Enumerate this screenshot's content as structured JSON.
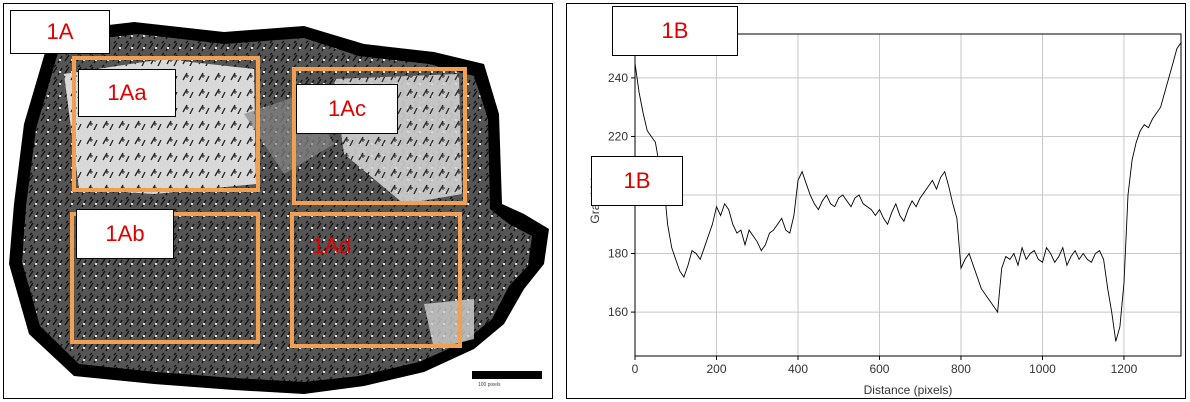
{
  "panel_a": {
    "label": "1A",
    "regions": [
      {
        "id": "1Aa"
      },
      {
        "id": "1Ab"
      },
      {
        "id": "1Ac"
      },
      {
        "id": "1Ad"
      }
    ],
    "scale_bar_text": "100 pixels",
    "roi_color": "#f0a050",
    "label_color": "#e00000"
  },
  "panel_b": {
    "label_top": "1B",
    "label_mid": "1B"
  },
  "chart_data": {
    "type": "line",
    "xlabel": "Distance (pixels)",
    "ylabel": "Gray Value",
    "xlim": [
      0,
      1340
    ],
    "ylim": [
      145,
      255
    ],
    "x_ticks": [
      0,
      200,
      400,
      600,
      800,
      1000,
      1200
    ],
    "y_ticks": [
      160,
      180,
      200,
      220,
      240
    ],
    "grid": true,
    "series": [
      {
        "x": [
          0,
          10,
          20,
          30,
          40,
          50,
          60,
          70,
          80,
          90,
          100,
          110,
          120,
          130,
          140,
          150,
          160,
          170,
          180,
          190,
          200,
          210,
          220,
          230,
          240,
          250,
          260,
          270,
          280,
          290,
          300,
          310,
          320,
          330,
          340,
          350,
          360,
          370,
          380,
          390,
          400,
          410,
          420,
          430,
          440,
          450,
          460,
          470,
          480,
          490,
          500,
          510,
          520,
          530,
          540,
          550,
          560,
          570,
          580,
          590,
          600,
          610,
          620,
          630,
          640,
          650,
          660,
          670,
          680,
          690,
          700,
          710,
          720,
          730,
          740,
          750,
          760,
          770,
          780,
          790,
          800,
          810,
          820,
          830,
          840,
          850,
          860,
          870,
          880,
          890,
          900,
          910,
          920,
          930,
          940,
          950,
          960,
          970,
          980,
          990,
          1000,
          1010,
          1020,
          1030,
          1040,
          1050,
          1060,
          1070,
          1080,
          1090,
          1100,
          1110,
          1120,
          1130,
          1140,
          1150,
          1160,
          1170,
          1180,
          1190,
          1200,
          1210,
          1220,
          1230,
          1240,
          1250,
          1260,
          1270,
          1280,
          1290,
          1300,
          1310,
          1320,
          1330,
          1340
        ],
        "y": [
          245,
          235,
          228,
          222,
          220,
          218,
          210,
          205,
          190,
          182,
          178,
          174,
          172,
          176,
          181,
          180,
          178,
          182,
          186,
          190,
          196,
          193,
          197,
          195,
          190,
          187,
          188,
          183,
          188,
          186,
          184,
          181,
          183,
          187,
          188,
          190,
          192,
          188,
          187,
          193,
          205,
          208,
          204,
          200,
          197,
          195,
          198,
          200,
          197,
          196,
          199,
          200,
          198,
          196,
          199,
          200,
          197,
          196,
          195,
          193,
          195,
          192,
          190,
          194,
          197,
          193,
          191,
          195,
          198,
          196,
          199,
          201,
          203,
          205,
          202,
          206,
          208,
          203,
          197,
          192,
          175,
          178,
          180,
          176,
          172,
          168,
          166,
          164,
          162,
          160,
          175,
          179,
          178,
          180,
          176,
          182,
          178,
          180,
          181,
          178,
          177,
          182,
          180,
          177,
          179,
          182,
          176,
          179,
          181,
          178,
          180,
          178,
          177,
          180,
          181,
          178,
          168,
          160,
          150,
          155,
          170,
          200,
          212,
          218,
          222,
          224,
          223,
          226,
          228,
          230,
          235,
          240,
          245,
          250,
          252
        ]
      }
    ]
  }
}
